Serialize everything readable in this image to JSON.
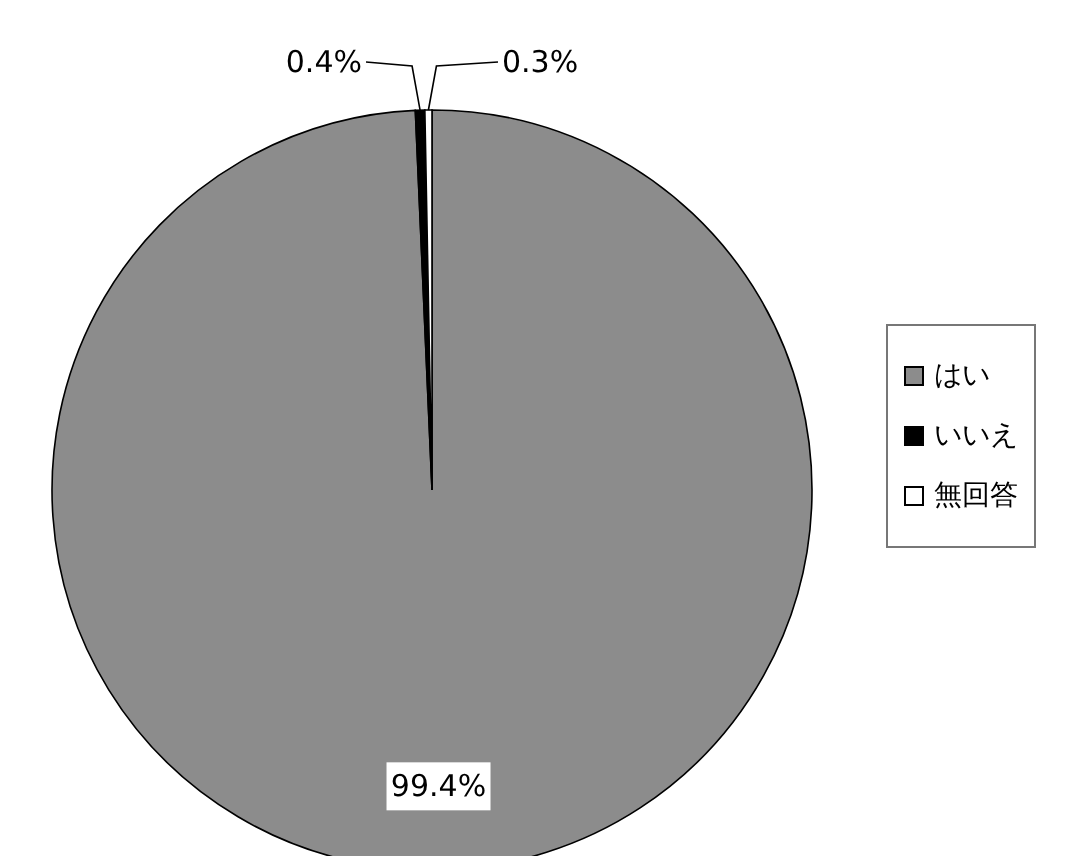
{
  "chart_data": {
    "type": "pie",
    "categories": [
      "はい",
      "いいえ",
      "無回答"
    ],
    "values": [
      99.4,
      0.4,
      0.3
    ],
    "colors": [
      "#8c8c8c",
      "#000000",
      "#ffffff"
    ],
    "value_labels": [
      "99.4%",
      "0.4%",
      "0.3%"
    ],
    "legend": "right"
  }
}
